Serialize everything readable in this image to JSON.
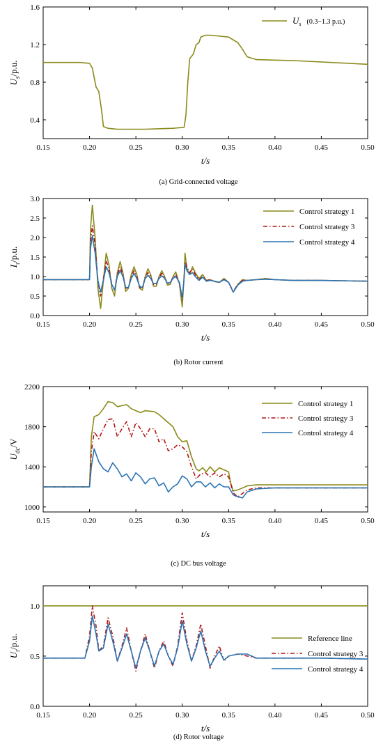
{
  "colors": {
    "olive": "#8a8a1a",
    "red": "#b01515",
    "blue": "#2a74b4",
    "axis": "#000000"
  },
  "chart_data": [
    {
      "type": "line",
      "id": "a",
      "caption": "(a) Grid-connected voltage",
      "xlabel": "t/s",
      "ylabel": "Us/p.u.",
      "ylabel_main": "U",
      "ylabel_sub": "s",
      "ylabel_rest": "/p.u.",
      "xlim": [
        0.15,
        0.5
      ],
      "ylim": [
        0.2,
        1.6
      ],
      "xticks": [
        "0.15",
        "0.20",
        "0.25",
        "0.30",
        "0.35",
        "0.40",
        "0.45",
        "0.50"
      ],
      "yticks": [
        "0.4",
        "0.8",
        "1.2",
        "1.6"
      ],
      "ytick_values": [
        0.4,
        0.8,
        1.2,
        1.6
      ],
      "legend_position": "top-right",
      "series": [
        {
          "name": "Us (0.3−1.3 p.u.)",
          "legend_main": "U",
          "legend_sub": "s",
          "legend_note": "(0.3−1.3 p.u.)",
          "color": "olive",
          "style": "solid",
          "x": [
            0.15,
            0.19,
            0.2,
            0.203,
            0.207,
            0.21,
            0.213,
            0.215,
            0.217,
            0.22,
            0.23,
            0.26,
            0.29,
            0.302,
            0.304,
            0.306,
            0.308,
            0.312,
            0.315,
            0.318,
            0.32,
            0.325,
            0.33,
            0.35,
            0.36,
            0.365,
            0.37,
            0.38,
            0.42,
            0.5
          ],
          "y": [
            1.01,
            1.01,
            1.0,
            0.95,
            0.75,
            0.7,
            0.5,
            0.33,
            0.32,
            0.31,
            0.3,
            0.3,
            0.31,
            0.32,
            0.45,
            0.8,
            1.05,
            1.1,
            1.2,
            1.22,
            1.28,
            1.3,
            1.3,
            1.28,
            1.22,
            1.15,
            1.07,
            1.04,
            1.03,
            0.99
          ]
        }
      ]
    },
    {
      "type": "line",
      "id": "b",
      "caption": "(b) Rotor current",
      "xlabel": "t/s",
      "ylabel": "Ir/p.u.",
      "ylabel_main": "I",
      "ylabel_sub": "r",
      "ylabel_rest": "/p.u.",
      "xlim": [
        0.15,
        0.5
      ],
      "ylim": [
        0.0,
        3.0
      ],
      "xticks": [
        "0.15",
        "0.20",
        "0.25",
        "0.30",
        "0.35",
        "0.40",
        "0.45",
        "0.50"
      ],
      "yticks": [
        "0.0",
        "0.5",
        "1.0",
        "1.5",
        "2.0",
        "2.5",
        "3.0"
      ],
      "ytick_values": [
        0.0,
        0.5,
        1.0,
        1.5,
        2.0,
        2.5,
        3.0
      ],
      "legend_position": "top-right",
      "series": [
        {
          "name": "Control strategy 1",
          "color": "olive",
          "style": "solid",
          "x": [
            0.15,
            0.2,
            0.201,
            0.203,
            0.206,
            0.209,
            0.212,
            0.215,
            0.218,
            0.221,
            0.224,
            0.227,
            0.23,
            0.233,
            0.236,
            0.239,
            0.242,
            0.245,
            0.248,
            0.251,
            0.254,
            0.257,
            0.26,
            0.263,
            0.266,
            0.269,
            0.272,
            0.275,
            0.278,
            0.281,
            0.284,
            0.287,
            0.29,
            0.293,
            0.297,
            0.3,
            0.302,
            0.303,
            0.305,
            0.308,
            0.311,
            0.314,
            0.318,
            0.322,
            0.326,
            0.33,
            0.335,
            0.34,
            0.345,
            0.35,
            0.355,
            0.36,
            0.365,
            0.37,
            0.38,
            0.39,
            0.4,
            0.42,
            0.45,
            0.5
          ],
          "y": [
            0.92,
            0.92,
            2.2,
            2.83,
            2.0,
            0.7,
            0.18,
            0.9,
            1.6,
            1.3,
            0.7,
            0.5,
            1.1,
            1.38,
            1.1,
            0.62,
            0.7,
            1.05,
            1.25,
            1.05,
            0.7,
            0.65,
            1.0,
            1.2,
            1.05,
            0.75,
            0.75,
            1.0,
            1.15,
            1.0,
            0.78,
            0.8,
            1.0,
            1.12,
            0.8,
            0.22,
            1.0,
            1.6,
            1.2,
            1.05,
            1.25,
            1.1,
            0.95,
            1.05,
            0.9,
            0.92,
            0.87,
            0.85,
            0.95,
            0.85,
            0.6,
            0.8,
            0.92,
            0.9,
            0.92,
            0.95,
            0.92,
            0.9,
            0.9,
            0.88
          ]
        },
        {
          "name": "Control strategy 3",
          "color": "red",
          "style": "dashdot",
          "x": [
            0.15,
            0.2,
            0.201,
            0.203,
            0.206,
            0.209,
            0.212,
            0.215,
            0.218,
            0.221,
            0.224,
            0.227,
            0.23,
            0.233,
            0.236,
            0.239,
            0.242,
            0.245,
            0.248,
            0.251,
            0.254,
            0.257,
            0.26,
            0.263,
            0.266,
            0.269,
            0.272,
            0.275,
            0.278,
            0.281,
            0.284,
            0.287,
            0.29,
            0.293,
            0.297,
            0.3,
            0.302,
            0.303,
            0.305,
            0.308,
            0.311,
            0.314,
            0.318,
            0.322,
            0.326,
            0.33,
            0.335,
            0.34,
            0.345,
            0.35,
            0.355,
            0.36,
            0.365,
            0.37,
            0.38,
            0.39,
            0.4,
            0.42,
            0.45,
            0.5
          ],
          "y": [
            0.92,
            0.92,
            1.9,
            2.3,
            1.8,
            0.9,
            0.5,
            0.95,
            1.4,
            1.2,
            0.8,
            0.65,
            1.05,
            1.25,
            1.05,
            0.7,
            0.72,
            1.0,
            1.15,
            1.0,
            0.72,
            0.7,
            0.98,
            1.1,
            1.0,
            0.8,
            0.8,
            0.98,
            1.08,
            0.98,
            0.82,
            0.83,
            0.98,
            1.05,
            0.82,
            0.4,
            1.0,
            1.38,
            1.25,
            1.1,
            1.2,
            1.05,
            0.92,
            1.0,
            0.9,
            0.92,
            0.88,
            0.85,
            0.93,
            0.85,
            0.62,
            0.8,
            0.9,
            0.9,
            0.92,
            0.94,
            0.92,
            0.9,
            0.9,
            0.88
          ]
        },
        {
          "name": "Control strategy 4",
          "color": "blue",
          "style": "solid",
          "x": [
            0.15,
            0.2,
            0.201,
            0.203,
            0.206,
            0.209,
            0.212,
            0.215,
            0.218,
            0.221,
            0.224,
            0.227,
            0.23,
            0.233,
            0.236,
            0.239,
            0.242,
            0.245,
            0.248,
            0.251,
            0.254,
            0.257,
            0.26,
            0.263,
            0.266,
            0.269,
            0.272,
            0.275,
            0.278,
            0.281,
            0.284,
            0.287,
            0.29,
            0.293,
            0.297,
            0.3,
            0.302,
            0.303,
            0.305,
            0.308,
            0.311,
            0.314,
            0.318,
            0.322,
            0.326,
            0.33,
            0.335,
            0.34,
            0.345,
            0.35,
            0.355,
            0.36,
            0.365,
            0.37,
            0.38,
            0.39,
            0.4,
            0.42,
            0.45,
            0.5
          ],
          "y": [
            0.92,
            0.92,
            1.7,
            2.05,
            1.6,
            0.9,
            0.6,
            0.9,
            1.25,
            1.1,
            0.8,
            0.65,
            1.0,
            1.15,
            1.0,
            0.72,
            0.72,
            0.95,
            1.08,
            0.95,
            0.75,
            0.72,
            0.95,
            1.03,
            0.95,
            0.82,
            0.82,
            0.95,
            1.02,
            0.95,
            0.83,
            0.85,
            0.95,
            1.0,
            0.85,
            0.45,
            0.95,
            1.3,
            1.15,
            1.05,
            1.1,
            1.0,
            0.9,
            0.98,
            0.88,
            0.9,
            0.88,
            0.85,
            0.92,
            0.85,
            0.6,
            0.78,
            0.88,
            0.9,
            0.92,
            0.93,
            0.92,
            0.9,
            0.9,
            0.88
          ]
        }
      ]
    },
    {
      "type": "line",
      "id": "c",
      "caption": "(c) DC bus voltage",
      "xlabel": "t/s",
      "ylabel": "Udc/V",
      "ylabel_main": "U",
      "ylabel_sub": "dc",
      "ylabel_rest": "/V",
      "xlim": [
        0.15,
        0.5
      ],
      "ylim": [
        950,
        2200
      ],
      "xticks": [
        "0.15",
        "0.20",
        "0.25",
        "0.30",
        "0.35",
        "0.40",
        "0.45",
        "0.50"
      ],
      "yticks": [
        "1000",
        "1400",
        "1800",
        "2200"
      ],
      "ytick_values": [
        1000,
        1400,
        1800,
        2200
      ],
      "legend_position": "top-right",
      "series": [
        {
          "name": "Control strategy 1",
          "color": "olive",
          "style": "solid",
          "x": [
            0.15,
            0.2,
            0.202,
            0.205,
            0.21,
            0.215,
            0.22,
            0.225,
            0.23,
            0.24,
            0.245,
            0.25,
            0.255,
            0.26,
            0.27,
            0.275,
            0.28,
            0.29,
            0.295,
            0.3,
            0.305,
            0.31,
            0.315,
            0.318,
            0.322,
            0.326,
            0.33,
            0.335,
            0.34,
            0.345,
            0.35,
            0.352,
            0.355,
            0.36,
            0.37,
            0.38,
            0.4,
            0.45,
            0.5
          ],
          "y": [
            1200,
            1200,
            1700,
            1900,
            1920,
            1980,
            2050,
            2040,
            2000,
            2020,
            1980,
            1960,
            1940,
            1960,
            1950,
            1920,
            1880,
            1800,
            1700,
            1650,
            1660,
            1500,
            1380,
            1360,
            1390,
            1350,
            1400,
            1350,
            1390,
            1370,
            1350,
            1250,
            1160,
            1170,
            1210,
            1220,
            1220,
            1220,
            1220
          ]
        },
        {
          "name": "Control strategy 3",
          "color": "red",
          "style": "dashdot",
          "x": [
            0.15,
            0.2,
            0.202,
            0.205,
            0.21,
            0.215,
            0.22,
            0.225,
            0.23,
            0.235,
            0.24,
            0.245,
            0.25,
            0.255,
            0.26,
            0.265,
            0.27,
            0.275,
            0.28,
            0.285,
            0.29,
            0.295,
            0.3,
            0.305,
            0.31,
            0.315,
            0.32,
            0.325,
            0.33,
            0.335,
            0.34,
            0.345,
            0.35,
            0.355,
            0.36,
            0.37,
            0.38,
            0.4,
            0.45,
            0.5
          ],
          "y": [
            1200,
            1200,
            1550,
            1750,
            1680,
            1780,
            1870,
            1880,
            1700,
            1780,
            1850,
            1700,
            1840,
            1780,
            1700,
            1780,
            1780,
            1650,
            1680,
            1560,
            1580,
            1620,
            1600,
            1550,
            1400,
            1280,
            1330,
            1340,
            1300,
            1340,
            1300,
            1330,
            1300,
            1140,
            1100,
            1170,
            1190,
            1190,
            1190,
            1190
          ]
        },
        {
          "name": "Control strategy 4",
          "color": "blue",
          "style": "solid",
          "x": [
            0.15,
            0.2,
            0.202,
            0.205,
            0.21,
            0.215,
            0.22,
            0.225,
            0.23,
            0.235,
            0.24,
            0.245,
            0.25,
            0.255,
            0.26,
            0.265,
            0.27,
            0.275,
            0.28,
            0.285,
            0.29,
            0.295,
            0.3,
            0.305,
            0.31,
            0.315,
            0.32,
            0.325,
            0.33,
            0.335,
            0.34,
            0.345,
            0.35,
            0.355,
            0.36,
            0.365,
            0.37,
            0.38,
            0.4,
            0.45,
            0.5
          ],
          "y": [
            1200,
            1200,
            1400,
            1580,
            1450,
            1380,
            1350,
            1440,
            1380,
            1300,
            1330,
            1260,
            1340,
            1300,
            1230,
            1280,
            1290,
            1210,
            1240,
            1150,
            1200,
            1230,
            1310,
            1280,
            1200,
            1250,
            1250,
            1200,
            1240,
            1190,
            1230,
            1200,
            1200,
            1120,
            1100,
            1090,
            1150,
            1180,
            1190,
            1190,
            1190
          ]
        }
      ]
    },
    {
      "type": "line",
      "id": "d",
      "caption": "(d) Rotor voltage",
      "xlabel": "t/s",
      "ylabel": "Ur/p.u.",
      "ylabel_main": "U",
      "ylabel_sub": "r",
      "ylabel_rest": "/p.u.",
      "xlim": [
        0.15,
        0.5
      ],
      "ylim": [
        0.0,
        1.2
      ],
      "xticks": [
        "0.15",
        "0.20",
        "0.25",
        "0.30",
        "0.35",
        "0.40",
        "0.45",
        "0.50"
      ],
      "yticks": [
        "0.0",
        "0.5",
        "1.0"
      ],
      "ytick_values": [
        0.0,
        0.5,
        1.0
      ],
      "legend_position": "right",
      "series": [
        {
          "name": "Reference line",
          "color": "olive",
          "style": "solid",
          "x": [
            0.15,
            0.5
          ],
          "y": [
            1.0,
            1.0
          ]
        },
        {
          "name": "Control strategy 3",
          "color": "red",
          "style": "dashdot",
          "x": [
            0.15,
            0.195,
            0.2,
            0.203,
            0.207,
            0.21,
            0.215,
            0.22,
            0.225,
            0.23,
            0.235,
            0.24,
            0.245,
            0.25,
            0.255,
            0.26,
            0.265,
            0.27,
            0.275,
            0.28,
            0.285,
            0.29,
            0.295,
            0.3,
            0.305,
            0.31,
            0.315,
            0.32,
            0.325,
            0.33,
            0.335,
            0.34,
            0.345,
            0.35,
            0.36,
            0.37,
            0.38,
            0.4,
            0.45,
            0.5
          ],
          "y": [
            0.48,
            0.48,
            0.7,
            1.0,
            0.8,
            0.55,
            0.6,
            0.88,
            0.7,
            0.45,
            0.6,
            0.78,
            0.55,
            0.35,
            0.55,
            0.72,
            0.55,
            0.38,
            0.55,
            0.65,
            0.5,
            0.4,
            0.6,
            0.93,
            0.65,
            0.45,
            0.6,
            0.82,
            0.6,
            0.38,
            0.5,
            0.6,
            0.45,
            0.5,
            0.52,
            0.5,
            0.48,
            0.48,
            0.48,
            0.47
          ]
        },
        {
          "name": "Control strategy 4",
          "color": "blue",
          "style": "solid",
          "x": [
            0.15,
            0.195,
            0.2,
            0.203,
            0.207,
            0.21,
            0.215,
            0.22,
            0.225,
            0.23,
            0.235,
            0.24,
            0.245,
            0.25,
            0.255,
            0.26,
            0.265,
            0.27,
            0.275,
            0.28,
            0.285,
            0.29,
            0.295,
            0.3,
            0.305,
            0.31,
            0.315,
            0.32,
            0.325,
            0.33,
            0.335,
            0.34,
            0.345,
            0.35,
            0.36,
            0.37,
            0.38,
            0.4,
            0.45,
            0.5
          ],
          "y": [
            0.48,
            0.48,
            0.65,
            0.9,
            0.72,
            0.55,
            0.58,
            0.82,
            0.65,
            0.45,
            0.58,
            0.72,
            0.55,
            0.38,
            0.55,
            0.68,
            0.55,
            0.4,
            0.55,
            0.62,
            0.5,
            0.42,
            0.58,
            0.85,
            0.62,
            0.45,
            0.58,
            0.75,
            0.55,
            0.4,
            0.48,
            0.55,
            0.46,
            0.5,
            0.52,
            0.52,
            0.48,
            0.48,
            0.48,
            0.47
          ]
        }
      ]
    }
  ]
}
